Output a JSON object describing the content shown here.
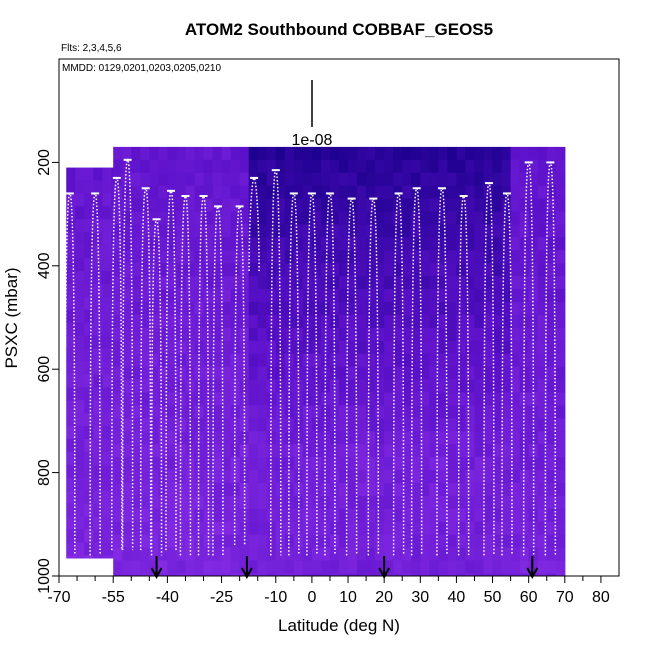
{
  "chart_data": {
    "type": "heatmap",
    "title": "ATOM2 Southbound COBBAF_GEOS5",
    "flights_text": "Flts: 2,3,4,5,6",
    "dates_text": "MMDD: 0129,0201,0203,0205,0210",
    "scale_label": "1e-08",
    "xlabel": "Latitude (deg N)",
    "ylabel": "PSXC (mbar)",
    "xlim": [
      -70,
      85
    ],
    "ylim": [
      1000,
      0
    ],
    "x_ticks": [
      -70,
      -55,
      -40,
      -25,
      -10,
      0,
      10,
      20,
      30,
      40,
      50,
      60,
      70,
      80
    ],
    "x_minor_ticks": [
      -65,
      -60,
      -50,
      -45,
      -35,
      -30,
      -20,
      -15,
      -5,
      5,
      15,
      25,
      35,
      45,
      55,
      65,
      75
    ],
    "y_ticks": [
      200,
      400,
      600,
      800,
      1000
    ],
    "arrow_latitudes": [
      -43,
      -18,
      20,
      61
    ],
    "field_blocks": [
      {
        "lat_min": -68,
        "lat_max": -55,
        "p_min": 210,
        "p_max": 965
      },
      {
        "lat_min": -55,
        "lat_max": 70,
        "p_min": 170,
        "p_max": 1000
      }
    ],
    "colors": {
      "light": "#8a2fe8",
      "mid": "#5a10c8",
      "dark": "#1a008c",
      "track": "#ffffff",
      "axis": "#000000"
    },
    "flight_profiles": [
      {
        "lat": -67,
        "p_top": 260,
        "p_bottom": 960
      },
      {
        "lat": -60,
        "p_top": 260,
        "p_bottom": 960
      },
      {
        "lat": -54,
        "p_top": 230,
        "p_bottom": 950
      },
      {
        "lat": -51,
        "p_top": 195,
        "p_bottom": 950
      },
      {
        "lat": -46,
        "p_top": 250,
        "p_bottom": 950
      },
      {
        "lat": -43,
        "p_top": 310,
        "p_bottom": 960
      },
      {
        "lat": -39,
        "p_top": 255,
        "p_bottom": 950
      },
      {
        "lat": -35,
        "p_top": 265,
        "p_bottom": 960
      },
      {
        "lat": -30,
        "p_top": 265,
        "p_bottom": 960
      },
      {
        "lat": -26,
        "p_top": 285,
        "p_bottom": 960
      },
      {
        "lat": -20,
        "p_top": 285,
        "p_bottom": 940
      },
      {
        "lat": -16,
        "p_top": 230,
        "p_bottom": 410
      },
      {
        "lat": -10,
        "p_top": 215,
        "p_bottom": 960
      },
      {
        "lat": -5,
        "p_top": 260,
        "p_bottom": 960
      },
      {
        "lat": 0,
        "p_top": 260,
        "p_bottom": 960
      },
      {
        "lat": 5,
        "p_top": 260,
        "p_bottom": 960
      },
      {
        "lat": 11,
        "p_top": 270,
        "p_bottom": 960
      },
      {
        "lat": 17,
        "p_top": 270,
        "p_bottom": 960
      },
      {
        "lat": 24,
        "p_top": 260,
        "p_bottom": 960
      },
      {
        "lat": 29,
        "p_top": 250,
        "p_bottom": 960
      },
      {
        "lat": 36,
        "p_top": 250,
        "p_bottom": 960
      },
      {
        "lat": 42,
        "p_top": 265,
        "p_bottom": 960
      },
      {
        "lat": 49,
        "p_top": 240,
        "p_bottom": 960
      },
      {
        "lat": 54,
        "p_top": 260,
        "p_bottom": 960
      },
      {
        "lat": 60,
        "p_top": 200,
        "p_bottom": 960
      },
      {
        "lat": 66,
        "p_top": 200,
        "p_bottom": 960
      }
    ]
  }
}
